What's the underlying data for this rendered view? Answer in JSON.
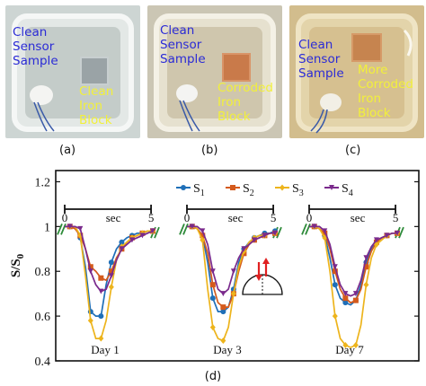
{
  "photos": [
    {
      "caption": "(a)",
      "left_text": "Clean\nSensor\nSample",
      "right_text": "Clean\nIron\nBlock",
      "bg": "#c9d2cf",
      "block_color": "#9aa3a6"
    },
    {
      "caption": "(b)",
      "left_text": "Clean\nSensor\nSample",
      "right_text": "Corroded\nIron\nBlock",
      "bg": "#cfc8b4",
      "block_color": "#c97a4a"
    },
    {
      "caption": "(c)",
      "left_text": "Clean\nSensor\nSample",
      "right_text": "More\nCorroded\nIron\nBlock",
      "bg": "#d7c293",
      "block_color": "#c6844f"
    }
  ],
  "chart_caption": "(d)",
  "colors": {
    "S1": "#1f6fb8",
    "S2": "#d45a1c",
    "S3": "#edb41c",
    "S4": "#7a2a8c",
    "axis": "#111111",
    "green": "#2e8b3a",
    "red_arrow": "#e02020"
  },
  "chart_data": {
    "type": "line",
    "ylabel": "S/S0",
    "ylabel_main": "S/S",
    "ylabel_sub": "0",
    "ylim": [
      0.4,
      1.25
    ],
    "yticks": [
      0.4,
      0.6,
      0.8,
      1,
      1.2
    ],
    "ytick_labels": [
      "0.4",
      "0.6",
      "0.8",
      "1",
      "1.2"
    ],
    "legend": [
      {
        "main": "S",
        "sub": "1",
        "key": "S1",
        "marker": "circle"
      },
      {
        "main": "S",
        "sub": "2",
        "key": "S2",
        "marker": "square"
      },
      {
        "main": "S",
        "sub": "3",
        "key": "S3",
        "marker": "diamond"
      },
      {
        "main": "S",
        "sub": "4",
        "key": "S4",
        "marker": "triangle"
      }
    ],
    "time_bar": {
      "start": "0",
      "end": "5",
      "unit": "sec"
    },
    "panels": [
      {
        "label": "Day 1",
        "x": [
          0,
          0.3,
          0.6,
          0.9,
          1.2,
          1.5,
          1.8,
          2.1,
          2.4,
          2.7,
          3.0,
          3.3,
          3.6,
          3.9,
          4.2,
          4.5,
          4.8,
          5.1
        ],
        "series": {
          "S1": [
            1.0,
            1.0,
            1.0,
            0.95,
            0.82,
            0.62,
            0.6,
            0.6,
            0.74,
            0.84,
            0.9,
            0.93,
            0.95,
            0.96,
            0.97,
            0.97,
            0.98,
            0.98
          ],
          "S2": [
            1.0,
            1.0,
            0.99,
            0.96,
            0.9,
            0.82,
            0.8,
            0.77,
            0.76,
            0.8,
            0.86,
            0.9,
            0.93,
            0.95,
            0.96,
            0.97,
            0.98,
            0.98
          ],
          "S3": [
            1.0,
            1.0,
            1.0,
            0.96,
            0.78,
            0.58,
            0.5,
            0.5,
            0.58,
            0.73,
            0.85,
            0.91,
            0.93,
            0.95,
            0.96,
            0.97,
            0.98,
            0.98
          ],
          "S4": [
            1.0,
            1.0,
            1.0,
            0.99,
            0.9,
            0.8,
            0.74,
            0.71,
            0.72,
            0.78,
            0.85,
            0.9,
            0.92,
            0.94,
            0.95,
            0.96,
            0.97,
            0.98
          ]
        }
      },
      {
        "label": "Day 3",
        "x": [
          0,
          0.3,
          0.6,
          0.9,
          1.2,
          1.5,
          1.8,
          2.1,
          2.4,
          2.7,
          3.0,
          3.3,
          3.6,
          3.9,
          4.2,
          4.5,
          4.8,
          5.1
        ],
        "series": {
          "S1": [
            1.0,
            1.0,
            0.99,
            0.96,
            0.84,
            0.68,
            0.62,
            0.62,
            0.64,
            0.72,
            0.84,
            0.9,
            0.93,
            0.95,
            0.96,
            0.97,
            0.97,
            0.98
          ],
          "S2": [
            1.0,
            1.0,
            0.99,
            0.96,
            0.88,
            0.74,
            0.66,
            0.64,
            0.64,
            0.7,
            0.8,
            0.88,
            0.92,
            0.94,
            0.95,
            0.96,
            0.97,
            0.97
          ],
          "S3": [
            1.0,
            1.0,
            0.99,
            0.94,
            0.72,
            0.55,
            0.5,
            0.49,
            0.55,
            0.7,
            0.82,
            0.89,
            0.93,
            0.95,
            0.96,
            0.96,
            0.97,
            0.97
          ],
          "S4": [
            1.0,
            1.0,
            1.0,
            0.98,
            0.92,
            0.8,
            0.72,
            0.7,
            0.72,
            0.8,
            0.86,
            0.9,
            0.92,
            0.94,
            0.95,
            0.96,
            0.97,
            0.97
          ]
        }
      },
      {
        "label": "Day 7",
        "x": [
          0,
          0.3,
          0.6,
          0.9,
          1.2,
          1.5,
          1.8,
          2.1,
          2.4,
          2.7,
          3.0,
          3.3,
          3.6,
          3.9,
          4.2,
          4.5,
          4.8,
          5.1
        ],
        "series": {
          "S1": [
            1.0,
            1.0,
            0.99,
            0.96,
            0.86,
            0.74,
            0.68,
            0.66,
            0.65,
            0.67,
            0.74,
            0.84,
            0.9,
            0.93,
            0.95,
            0.96,
            0.97,
            0.97
          ],
          "S2": [
            1.0,
            1.0,
            0.99,
            0.97,
            0.9,
            0.8,
            0.72,
            0.68,
            0.66,
            0.67,
            0.72,
            0.82,
            0.89,
            0.93,
            0.95,
            0.96,
            0.97,
            0.97
          ],
          "S3": [
            1.0,
            1.0,
            0.99,
            0.95,
            0.8,
            0.6,
            0.5,
            0.47,
            0.46,
            0.47,
            0.56,
            0.74,
            0.86,
            0.92,
            0.94,
            0.96,
            0.97,
            0.97
          ],
          "S4": [
            1.0,
            1.0,
            1.0,
            0.98,
            0.92,
            0.82,
            0.74,
            0.7,
            0.69,
            0.7,
            0.76,
            0.86,
            0.91,
            0.94,
            0.95,
            0.96,
            0.97,
            0.97
          ]
        }
      }
    ]
  }
}
